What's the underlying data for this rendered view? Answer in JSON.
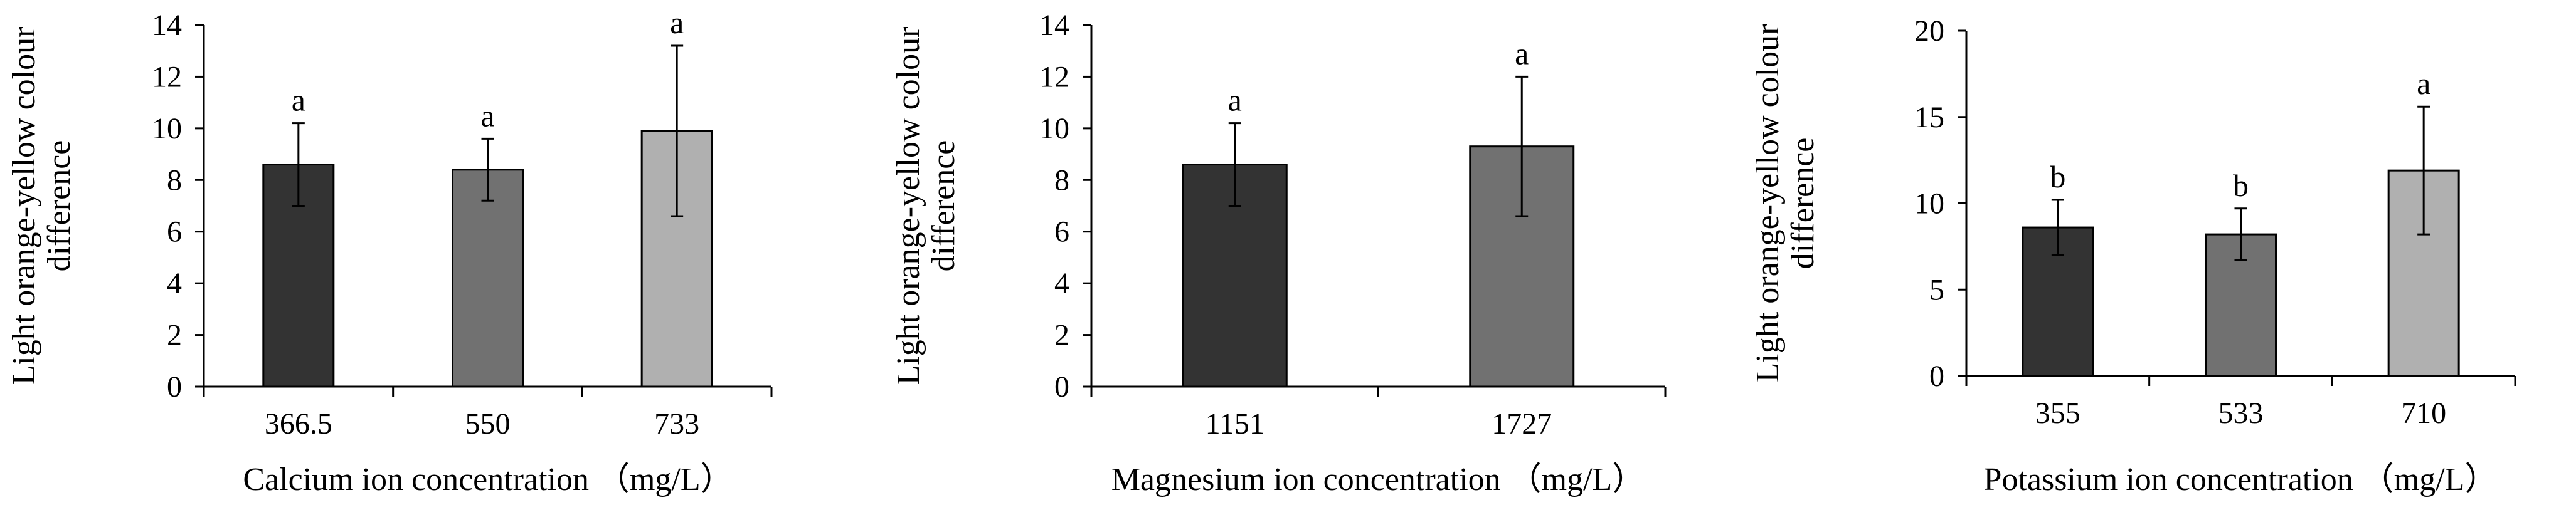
{
  "chart_data": [
    {
      "type": "bar",
      "categories": [
        "366.5",
        "550",
        "733"
      ],
      "values": [
        8.6,
        8.4,
        9.9
      ],
      "error": [
        1.6,
        1.2,
        3.3
      ],
      "significance": [
        "a",
        "a",
        "a"
      ],
      "colors": [
        "#333333",
        "#717171",
        "#b0b0b0"
      ],
      "xlabel": "Calcium ion concentration （mg/L）",
      "ylabel": "Light orange-yellow colour difference",
      "ylim": [
        0,
        14
      ],
      "yticks": [
        "0",
        "2",
        "4",
        "6",
        "8",
        "10",
        "12",
        "14"
      ],
      "grid": false
    },
    {
      "type": "bar",
      "categories": [
        "1151",
        "1727"
      ],
      "values": [
        8.6,
        9.3
      ],
      "error": [
        1.6,
        2.7
      ],
      "significance": [
        "a",
        "a"
      ],
      "colors": [
        "#333333",
        "#717171"
      ],
      "xlabel": "Magnesium ion concentration （mg/L）",
      "ylabel": "Light orange-yellow colour difference",
      "ylim": [
        0,
        14
      ],
      "yticks": [
        "0",
        "2",
        "4",
        "6",
        "8",
        "10",
        "12",
        "14"
      ],
      "grid": false
    },
    {
      "type": "bar",
      "categories": [
        "355",
        "533",
        "710"
      ],
      "values": [
        8.6,
        8.2,
        11.9
      ],
      "error": [
        1.6,
        1.5,
        3.7
      ],
      "significance": [
        "b",
        "b",
        "a"
      ],
      "colors": [
        "#333333",
        "#717171",
        "#b0b0b0"
      ],
      "xlabel": "Potassium ion concentration （mg/L）",
      "ylabel": "Light orange-yellow colour difference",
      "ylim": [
        0,
        20
      ],
      "yticks": [
        "0",
        "5",
        "10",
        "15",
        "20"
      ],
      "grid": false
    }
  ]
}
